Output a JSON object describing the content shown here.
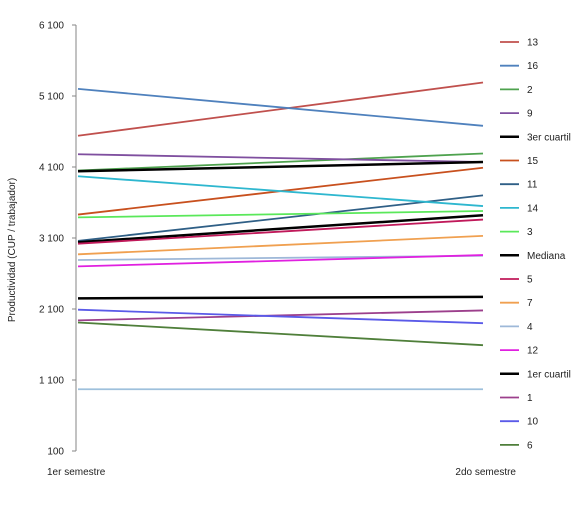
{
  "chart_data": {
    "type": "line",
    "title": "",
    "xlabel": "",
    "ylabel": "Productividad (CUP / trabajador)",
    "categories": [
      "1er semestre",
      "2do semestre"
    ],
    "ylim": [
      100,
      6100
    ],
    "yticks": [
      100,
      1100,
      2100,
      3100,
      4100,
      5100,
      6100
    ],
    "ytick_labels": [
      "100",
      "1 100",
      "2 100",
      "3 100",
      "4 100",
      "5 100",
      "6 100"
    ],
    "grid": false,
    "legend": "right",
    "series": [
      {
        "name": "13",
        "color": "#C0504D",
        "values": [
          4540,
          5290
        ]
      },
      {
        "name": "16",
        "color": "#4F81BD",
        "values": [
          5200,
          4680
        ]
      },
      {
        "name": "2",
        "color": "#4EA24E",
        "values": [
          4050,
          4290
        ]
      },
      {
        "name": "9",
        "color": "#7F4F9F",
        "values": [
          4280,
          4170
        ]
      },
      {
        "name": "3er cuartil",
        "color": "#000000",
        "values": [
          4040,
          4170
        ]
      },
      {
        "name": "15",
        "color": "#C8501E",
        "values": [
          3430,
          4090
        ]
      },
      {
        "name": "11",
        "color": "#2F5F86",
        "values": [
          3060,
          3700
        ]
      },
      {
        "name": "14",
        "color": "#2EB7CF",
        "values": [
          3970,
          3550
        ]
      },
      {
        "name": "3",
        "color": "#5AE85A",
        "values": [
          3390,
          3480
        ]
      },
      {
        "name": "Mediana",
        "color": "#000000",
        "values": [
          3040,
          3420
        ]
      },
      {
        "name": "5",
        "color": "#C0195A",
        "values": [
          3020,
          3360
        ]
      },
      {
        "name": "7",
        "color": "#F0A050",
        "values": [
          2870,
          3130
        ]
      },
      {
        "name": "4",
        "color": "#9EB8D8",
        "values": [
          2790,
          2850
        ]
      },
      {
        "name": "12",
        "color": "#E020E0",
        "values": [
          2700,
          2860
        ]
      },
      {
        "name": "1er cuartil",
        "color": "#000000",
        "values": [
          2250,
          2270
        ]
      },
      {
        "name": "1",
        "color": "#9C3F8C",
        "values": [
          1940,
          2080
        ]
      },
      {
        "name": "10",
        "color": "#5A5AE8",
        "values": [
          2090,
          1900
        ]
      },
      {
        "name": "6",
        "color": "#4F7F3A",
        "values": [
          1910,
          1590
        ]
      },
      {
        "name": "",
        "color": "#9EC0DC",
        "values": [
          970,
          970
        ]
      }
    ]
  }
}
